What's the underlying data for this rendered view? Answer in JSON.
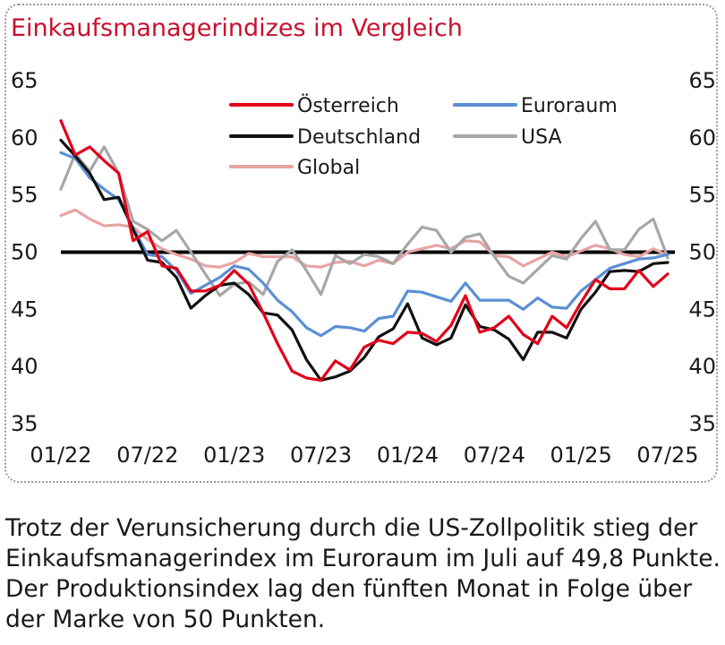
{
  "caption": "Trotz der Verunsicherung durch die US-Zollpolitik stieg der\nEinkaufsmanagerindex im Euroraum im Juli auf 49,8 Punkte.\nDer Produktionsindex lag den fünften Monat in Folge über\nder Marke von 50 Punkten.",
  "chart_data": {
    "type": "line",
    "title": "Einkaufsmanagerindizes im Vergleich",
    "x": [
      "01/22",
      "02/22",
      "03/22",
      "04/22",
      "05/22",
      "06/22",
      "07/22",
      "08/22",
      "09/22",
      "10/22",
      "11/22",
      "12/22",
      "01/23",
      "02/23",
      "03/23",
      "04/23",
      "05/23",
      "06/23",
      "07/23",
      "08/23",
      "09/23",
      "10/23",
      "11/23",
      "12/23",
      "01/24",
      "02/24",
      "03/24",
      "04/24",
      "05/24",
      "06/24",
      "07/24",
      "08/24",
      "09/24",
      "10/24",
      "11/24",
      "12/24",
      "01/25",
      "02/25",
      "03/25",
      "04/25",
      "05/25",
      "06/25",
      "07/25"
    ],
    "x_tick_labels": [
      "01/22",
      "07/22",
      "01/23",
      "07/23",
      "01/24",
      "07/24",
      "01/25",
      "07/25"
    ],
    "ylim": [
      35,
      65
    ],
    "y_ticks": [
      35,
      40,
      45,
      50,
      55,
      60,
      65
    ],
    "y_tick_labels": [
      "35",
      "40",
      "45",
      "50",
      "55",
      "60",
      "65"
    ],
    "reference_line": 50,
    "legend_position": "top",
    "series": [
      {
        "name": "Österreich",
        "color": "#e2001a",
        "width": 3.2,
        "values": [
          61.5,
          58.5,
          59.2,
          58.0,
          56.9,
          51.0,
          51.8,
          48.8,
          48.6,
          46.6,
          46.6,
          47.1,
          48.4,
          47.2,
          44.7,
          42.0,
          39.6,
          39.0,
          38.8,
          40.5,
          39.7,
          41.7,
          42.3,
          42.0,
          43.0,
          42.9,
          42.2,
          43.6,
          46.2,
          43.0,
          43.4,
          44.4,
          42.8,
          42.0,
          44.4,
          43.4,
          45.6,
          47.6,
          46.8,
          46.8,
          48.4,
          47.0,
          48.1
        ]
      },
      {
        "name": "Euroraum",
        "color": "#5b8fd6",
        "width": 3.2,
        "values": [
          58.7,
          58.2,
          56.5,
          55.5,
          54.6,
          52.1,
          49.8,
          49.6,
          48.4,
          46.4,
          47.1,
          47.8,
          48.8,
          48.5,
          47.3,
          45.8,
          44.8,
          43.4,
          42.7,
          43.5,
          43.4,
          43.1,
          44.2,
          44.4,
          46.6,
          46.5,
          46.1,
          45.7,
          47.3,
          45.8,
          45.8,
          45.8,
          45.0,
          46.0,
          45.2,
          45.1,
          46.6,
          47.6,
          48.6,
          49.0,
          49.4,
          49.5,
          49.8
        ]
      },
      {
        "name": "Deutschland",
        "color": "#111111",
        "width": 3.2,
        "values": [
          59.8,
          58.4,
          56.9,
          54.6,
          54.8,
          52.0,
          49.3,
          49.1,
          47.8,
          45.1,
          46.2,
          47.1,
          47.3,
          46.3,
          44.7,
          44.5,
          43.2,
          40.6,
          38.8,
          39.1,
          39.6,
          40.8,
          42.6,
          43.3,
          45.5,
          42.5,
          41.9,
          42.5,
          45.4,
          43.5,
          43.2,
          42.4,
          40.6,
          43.0,
          43.0,
          42.5,
          45.0,
          46.5,
          48.3,
          48.4,
          48.3,
          49.0,
          49.1
        ]
      },
      {
        "name": "USA",
        "color": "#a7a7a7",
        "width": 3.2,
        "values": [
          55.5,
          58.6,
          57.1,
          59.2,
          56.9,
          52.7,
          52.0,
          51.0,
          51.9,
          50.0,
          48.1,
          46.2,
          47.2,
          47.4,
          46.3,
          49.2,
          50.2,
          48.4,
          46.3,
          49.7,
          49.0,
          49.8,
          49.6,
          49.0,
          50.7,
          52.2,
          51.9,
          50.0,
          51.3,
          51.6,
          49.6,
          47.9,
          47.3,
          48.5,
          49.7,
          49.4,
          51.2,
          52.7,
          50.2,
          50.2,
          52.0,
          52.9,
          49.5
        ]
      },
      {
        "name": "Global",
        "color": "#e8a3a3",
        "width": 3.2,
        "values": [
          53.2,
          53.7,
          52.9,
          52.3,
          52.4,
          52.2,
          51.1,
          50.3,
          49.8,
          49.4,
          48.8,
          48.7,
          49.1,
          49.9,
          49.6,
          49.6,
          49.6,
          48.8,
          48.7,
          49.1,
          49.2,
          48.8,
          49.3,
          49.0,
          50.0,
          50.3,
          50.6,
          50.3,
          51.0,
          50.9,
          49.7,
          49.6,
          48.8,
          49.4,
          50.0,
          49.6,
          50.1,
          50.6,
          50.3,
          49.8,
          49.6,
          50.3,
          49.7
        ]
      }
    ],
    "legend_layout": [
      [
        "Österreich",
        "Euroraum"
      ],
      [
        "Deutschland",
        "USA"
      ],
      [
        "Global"
      ]
    ]
  }
}
